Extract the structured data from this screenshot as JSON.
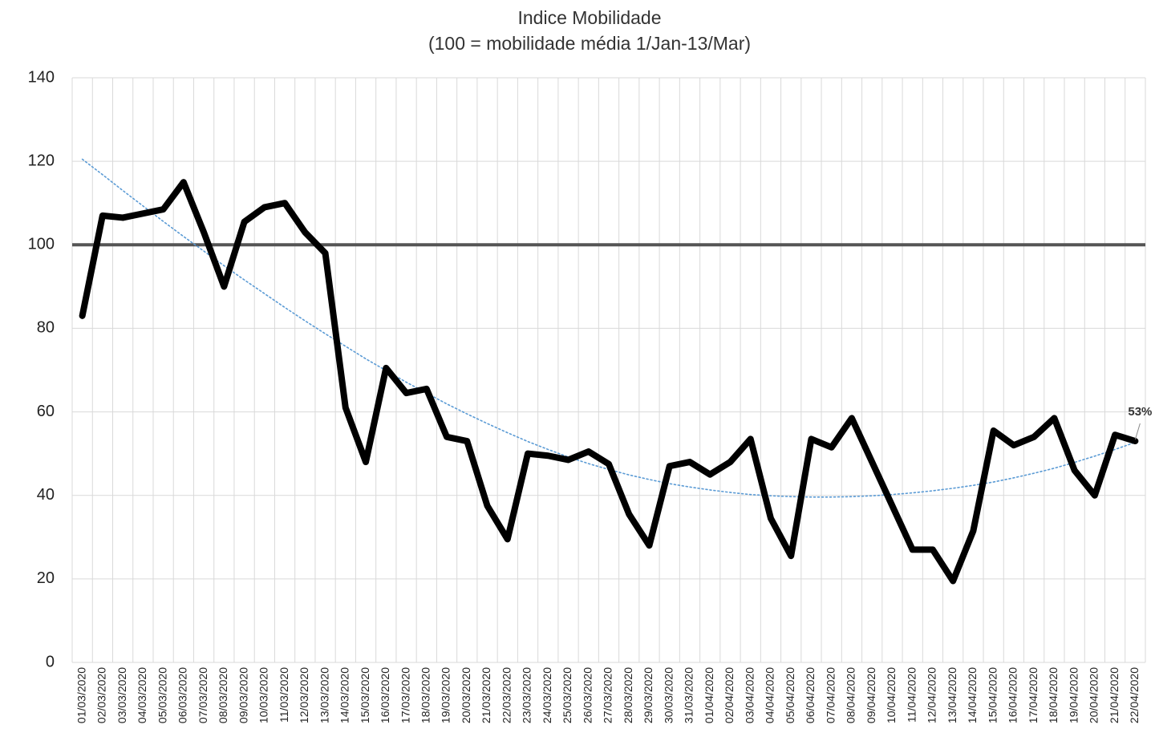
{
  "chart_data": {
    "type": "line",
    "title": "Indice Mobilidade",
    "subtitle": "(100 = mobilidade média 1/Jan-13/Mar)",
    "categories": [
      "01/03/2020",
      "02/03/2020",
      "03/03/2020",
      "04/03/2020",
      "05/03/2020",
      "06/03/2020",
      "07/03/2020",
      "08/03/2020",
      "09/03/2020",
      "10/03/2020",
      "11/03/2020",
      "12/03/2020",
      "13/03/2020",
      "14/03/2020",
      "15/03/2020",
      "16/03/2020",
      "17/03/2020",
      "18/03/2020",
      "19/03/2020",
      "20/03/2020",
      "21/03/2020",
      "22/03/2020",
      "23/03/2020",
      "24/03/2020",
      "25/03/2020",
      "26/03/2020",
      "27/03/2020",
      "28/03/2020",
      "29/03/2020",
      "30/03/2020",
      "31/03/2020",
      "01/04/2020",
      "02/04/2020",
      "03/04/2020",
      "04/04/2020",
      "05/04/2020",
      "06/04/2020",
      "07/04/2020",
      "08/04/2020",
      "09/04/2020",
      "10/04/2020",
      "11/04/2020",
      "12/04/2020",
      "13/04/2020",
      "14/04/2020",
      "15/04/2020",
      "16/04/2020",
      "17/04/2020",
      "18/04/2020",
      "19/04/2020",
      "20/04/2020",
      "21/04/2020",
      "22/04/2020"
    ],
    "series": [
      {
        "color": "#000000",
        "width": 8,
        "values": [
          83,
          107,
          106.5,
          107.5,
          108.5,
          115,
          103,
          90,
          105.5,
          109,
          110,
          103,
          98,
          61,
          48,
          70.5,
          64.5,
          65.5,
          54,
          53,
          37.5,
          29.5,
          50,
          49.5,
          48.5,
          50.5,
          47.5,
          35.5,
          28,
          47,
          48,
          45,
          48,
          53.5,
          34.5,
          25.5,
          53.5,
          51.5,
          58.5,
          48,
          37.5,
          27,
          27,
          19.5,
          31.5,
          55.5,
          52,
          54,
          58.5,
          46,
          40,
          54.5,
          53
        ],
        "value_labels": [
          null,
          null,
          null,
          null,
          null,
          null,
          null,
          null,
          null,
          null,
          null,
          null,
          null,
          null,
          null,
          null,
          null,
          null,
          null,
          null,
          null,
          null,
          null,
          null,
          null,
          null,
          null,
          null,
          null,
          null,
          null,
          null,
          null,
          null,
          null,
          null,
          null,
          null,
          null,
          null,
          null,
          null,
          null,
          null,
          null,
          null,
          null,
          null,
          null,
          null,
          null,
          null,
          "53%"
        ]
      },
      {
        "color": "#5b9bd5",
        "width": 1.6,
        "dashed": true,
        "values": [
          120.5,
          116.8,
          113,
          109.3,
          105.6,
          102,
          98.5,
          95,
          91.6,
          88.3,
          85,
          81.8,
          78.7,
          75.7,
          72.7,
          69.9,
          67.1,
          64.5,
          61.9,
          59.5,
          57.2,
          55,
          52.9,
          51,
          49.2,
          47.6,
          46.2,
          44.9,
          43.8,
          42.8,
          42,
          41.3,
          40.7,
          40.2,
          39.9,
          39.7,
          39.6,
          39.6,
          39.7,
          39.9,
          40.2,
          40.6,
          41.1,
          41.7,
          42.4,
          43.2,
          44.2,
          45.3,
          46.5,
          47.9,
          49.4,
          51,
          52.7
        ]
      }
    ],
    "reference_line": 100,
    "reference_color": "#555555",
    "ylim": [
      0,
      140
    ],
    "yticks": [
      0,
      20,
      40,
      60,
      80,
      100,
      120,
      140
    ],
    "grid": true
  }
}
